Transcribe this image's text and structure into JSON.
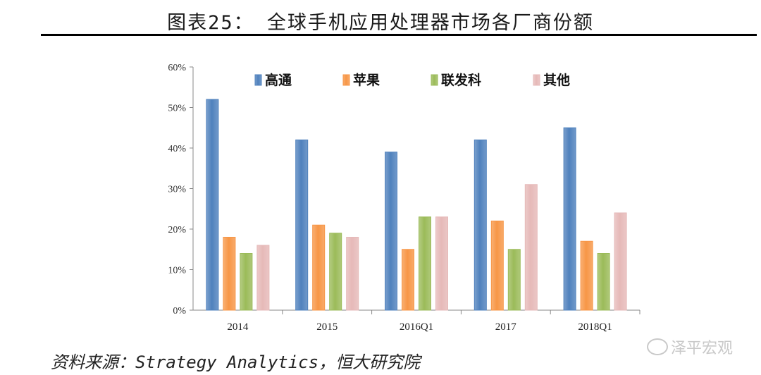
{
  "header": {
    "title": "图表25：  全球手机应用处理器市场各厂商份额"
  },
  "footer": {
    "source": "资料来源：Strategy Analytics，恒大研究院",
    "watermark": "泽平宏观"
  },
  "chart_data": {
    "type": "bar",
    "title": "图表25：  全球手机应用处理器市场各厂商份额",
    "categories": [
      "2014",
      "2015",
      "2016Q1",
      "2017",
      "2018Q1"
    ],
    "series": [
      {
        "name": "高通",
        "color": "#4f81bd",
        "values": [
          52,
          42,
          39,
          42,
          45
        ]
      },
      {
        "name": "苹果",
        "color": "#f79646",
        "values": [
          18,
          21,
          15,
          22,
          17
        ]
      },
      {
        "name": "联发科",
        "color": "#9bbb59",
        "values": [
          14,
          19,
          23,
          15,
          14
        ]
      },
      {
        "name": "其他",
        "color": "#e6b9b8",
        "values": [
          16,
          18,
          23,
          31,
          24
        ]
      }
    ],
    "yticks": [
      "0%",
      "10%",
      "20%",
      "30%",
      "40%",
      "50%",
      "60%"
    ],
    "ylim": [
      0,
      60
    ],
    "xlabel": "",
    "ylabel": "",
    "legend_position": "top"
  }
}
